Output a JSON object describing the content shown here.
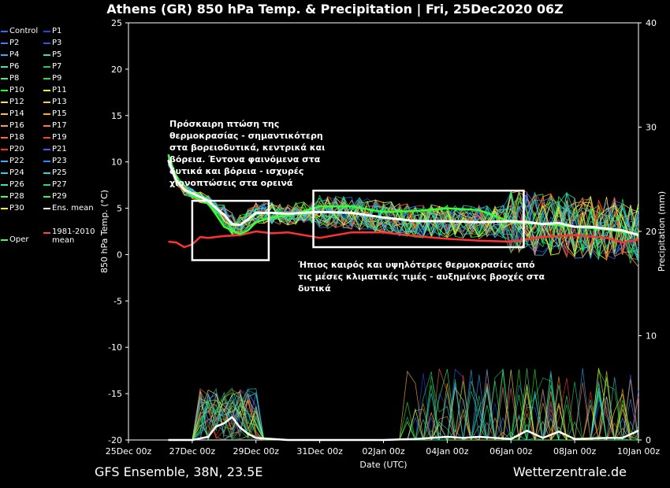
{
  "header": {
    "title": "Athens  (GR)  850 hPa Temp. & Precipitation | Fri, 25Dec2020 06Z"
  },
  "footer": {
    "source": "GFS Ensemble, 38N, 23.5E",
    "site": "Wetterzentrale.de"
  },
  "annotations": {
    "note1": [
      "Πρόσκαιρη πτώση της",
      "θερμοκρασίας - σημαντικότερη",
      "στα βορειοδυτικά, κεντρικά και",
      "βόρεια. Έντονα φαινόμενα στα",
      "δυτικά και βόρεια - ισχυρές",
      "χιονοπτώσεις στα ορεινά"
    ],
    "note2": [
      "Ήπιος καιρός και υψηλότερες θερμοκρασίες από",
      "τις μέσες κλιματικές τιμές - αυξημένες βροχές στα",
      "δυτικά"
    ]
  },
  "legend": [
    {
      "label": "Control",
      "color": "#3366ff"
    },
    {
      "label": "P1",
      "color": "#2244ee"
    },
    {
      "label": "P2",
      "color": "#4477ff"
    },
    {
      "label": "P3",
      "color": "#3355dd"
    },
    {
      "label": "P4",
      "color": "#33aaff"
    },
    {
      "label": "P5",
      "color": "#33ddcc"
    },
    {
      "label": "P6",
      "color": "#55ddaa"
    },
    {
      "label": "P7",
      "color": "#22cc66"
    },
    {
      "label": "P8",
      "color": "#44ee77"
    },
    {
      "label": "P9",
      "color": "#33dd33"
    },
    {
      "label": "P10",
      "color": "#22ff22"
    },
    {
      "label": "P11",
      "color": "#ffff33"
    },
    {
      "label": "P12",
      "color": "#ffdd44"
    },
    {
      "label": "P13",
      "color": "#ffcc33"
    },
    {
      "label": "P14",
      "color": "#ffbb55"
    },
    {
      "label": "P15",
      "color": "#ffaa22"
    },
    {
      "label": "P16",
      "color": "#ff9966"
    },
    {
      "label": "P17",
      "color": "#ff7744"
    },
    {
      "label": "P18",
      "color": "#ff6633"
    },
    {
      "label": "P19",
      "color": "#ff4422"
    },
    {
      "label": "P20",
      "color": "#ff3311"
    },
    {
      "label": "P21",
      "color": "#3366ff"
    },
    {
      "label": "P22",
      "color": "#44aaff"
    },
    {
      "label": "P23",
      "color": "#3388ff"
    },
    {
      "label": "P24",
      "color": "#33ccdd"
    },
    {
      "label": "P25",
      "color": "#22ddcc"
    },
    {
      "label": "P26",
      "color": "#33ee99"
    },
    {
      "label": "P27",
      "color": "#22dd77"
    },
    {
      "label": "P28",
      "color": "#44ff66"
    },
    {
      "label": "P29",
      "color": "#22ff44"
    },
    {
      "label": "P30",
      "color": "#ffff44"
    },
    {
      "label": "Ens. mean",
      "color": "#ffffff"
    },
    {
      "label": "1981-2010",
      "label2": "mean",
      "color": "#ff4444"
    },
    {
      "label": "Oper",
      "color": "#44ff44"
    }
  ],
  "chart_data": {
    "type": "line",
    "xlabel": "Date (UTC)",
    "ylabel": "850 hPa Temp. (°C)",
    "y2label": "Precipitation (mm)",
    "xlim": [
      0,
      16
    ],
    "ylim": [
      -20,
      25
    ],
    "y2lim": [
      0,
      40
    ],
    "x_ticks": [
      {
        "x": 0,
        "label": "25Dec 00z"
      },
      {
        "x": 2,
        "label": "27Dec 00z"
      },
      {
        "x": 4,
        "label": "29Dec 00z"
      },
      {
        "x": 6,
        "label": "31Dec 00z"
      },
      {
        "x": 8,
        "label": "02Jan 00z"
      },
      {
        "x": 10,
        "label": "04Jan 00z"
      },
      {
        "x": 12,
        "label": "06Jan 00z"
      },
      {
        "x": 14,
        "label": "08Jan 00z"
      },
      {
        "x": 16,
        "label": "10Jan 00z"
      }
    ],
    "y_ticks": [
      -20,
      -15,
      -10,
      -5,
      0,
      5,
      10,
      15,
      20,
      25
    ],
    "y2_ticks": [
      0,
      10,
      20,
      30,
      40
    ],
    "ens_mean_temp": {
      "x": [
        1.25,
        1.5,
        1.75,
        2,
        2.5,
        2.75,
        3,
        3.25,
        3.5,
        3.75,
        4,
        4.5,
        5,
        5.5,
        6,
        7,
        8,
        9,
        10,
        11,
        12,
        12.5,
        13,
        13.5,
        14,
        14.5,
        15,
        15.5,
        16
      ],
      "y": [
        10.2,
        8,
        7,
        6.6,
        5.8,
        5,
        4.3,
        3.3,
        3.2,
        3.8,
        4.5,
        4.5,
        4.4,
        4.5,
        4.6,
        4.5,
        4,
        3.6,
        3.6,
        3.5,
        3.6,
        3.5,
        3.3,
        3.4,
        3,
        3,
        2.8,
        2.6,
        2.1
      ]
    },
    "oper_temp": {
      "x": [
        1.25,
        1.5,
        1.75,
        2,
        2.5,
        2.75,
        3,
        3.25,
        3.5,
        3.75,
        4,
        4.5,
        5,
        5.5,
        6,
        7,
        8,
        9,
        10,
        11,
        12,
        13,
        14,
        15,
        16
      ],
      "y": [
        10.8,
        8.3,
        7,
        6.3,
        5.5,
        4.3,
        3,
        2.6,
        2.2,
        2.6,
        3.5,
        4,
        4.2,
        4.7,
        5.2,
        5.2,
        4.6,
        4.7,
        5,
        4.8,
        3.5,
        3.3,
        3,
        2.7,
        2.2
      ]
    },
    "climate_mean_temp": {
      "x": [
        1.25,
        1.5,
        1.75,
        2,
        2.25,
        2.5,
        3,
        3.5,
        4,
        4.5,
        5,
        5.5,
        6,
        7,
        8,
        9,
        10,
        11,
        12,
        13,
        14,
        15,
        15.5,
        16
      ],
      "y": [
        1.4,
        1.3,
        0.8,
        1.1,
        1.9,
        1.8,
        2,
        2.1,
        2.5,
        2.3,
        2.4,
        2.1,
        1.8,
        2.4,
        2.4,
        2,
        1.7,
        1.5,
        1.4,
        1.9,
        2.1,
        1.8,
        1.3,
        1.6
      ]
    },
    "ens_mean_precip": {
      "x": [
        1.25,
        2,
        2.5,
        2.75,
        3,
        3.25,
        3.5,
        3.75,
        4,
        5,
        6,
        8,
        9,
        10,
        10.5,
        11,
        12,
        12.5,
        13,
        13.5,
        14,
        15,
        15.5,
        16
      ],
      "y": [
        0,
        0,
        0.3,
        1.3,
        1.6,
        2.2,
        1.2,
        0.6,
        0.2,
        0,
        0,
        0,
        0.1,
        0.3,
        0.2,
        0.3,
        0.1,
        0.9,
        0.2,
        0.8,
        0.1,
        0.2,
        0.2,
        0.9
      ]
    },
    "regions": [
      {
        "x0": 2,
        "x1": 4.4,
        "y0": -0.6,
        "y1": 5.8
      },
      {
        "x0": 5.8,
        "x1": 12.4,
        "y0": 0.8,
        "y1": 6.9
      }
    ]
  }
}
